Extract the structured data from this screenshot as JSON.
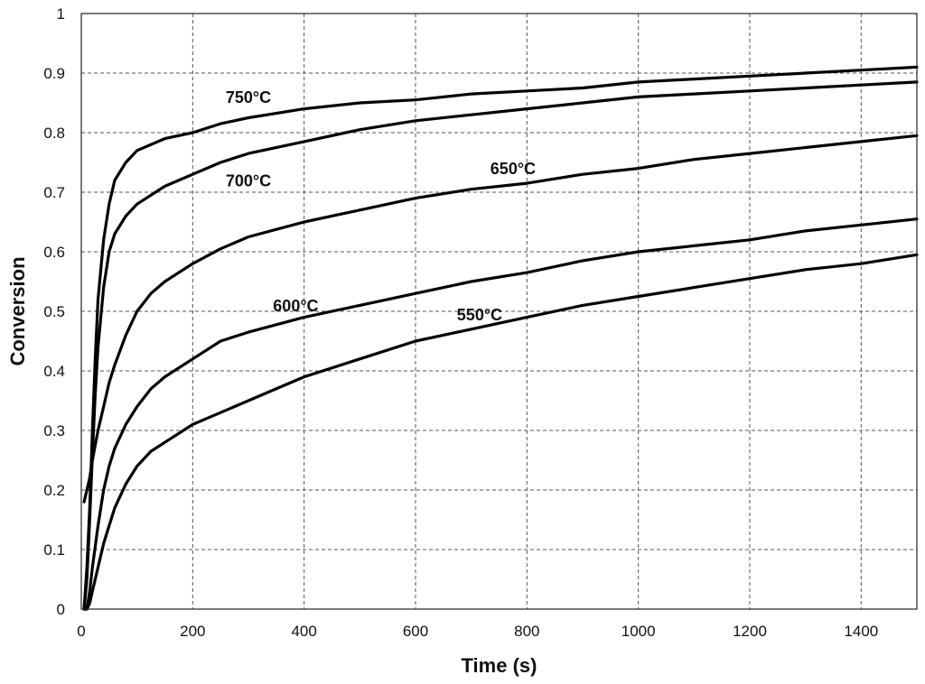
{
  "chart_data": {
    "type": "line",
    "title": "",
    "xlabel": "Time (s)",
    "ylabel": "Conversion",
    "xlim": [
      0,
      1500
    ],
    "ylim": [
      0,
      1
    ],
    "x_ticks": [
      0,
      200,
      400,
      600,
      800,
      1000,
      1200,
      1400
    ],
    "y_ticks": [
      0,
      0.1,
      0.2,
      0.3,
      0.4,
      0.5,
      0.6,
      0.7,
      0.8,
      0.9,
      1
    ],
    "x_tick_labels": [
      "0",
      "200",
      "400",
      "600",
      "800",
      "1000",
      "1200",
      "1400"
    ],
    "y_tick_labels": [
      "0",
      "0.1",
      "0.2",
      "0.3",
      "0.4",
      "0.5",
      "0.6",
      "0.7",
      "0.8",
      "0.9",
      "1"
    ],
    "grid": true,
    "legend": "none",
    "line_color": "#000000",
    "series": [
      {
        "x": [
          5,
          10,
          15,
          20,
          25,
          30,
          40,
          50,
          60,
          80,
          100,
          150,
          200,
          250,
          300,
          400,
          500,
          600,
          700,
          800,
          900,
          1000,
          1100,
          1200,
          1300,
          1400,
          1500
        ],
        "y": [
          0.0,
          0.07,
          0.17,
          0.3,
          0.42,
          0.52,
          0.62,
          0.68,
          0.72,
          0.75,
          0.77,
          0.79,
          0.8,
          0.815,
          0.825,
          0.84,
          0.85,
          0.855,
          0.865,
          0.87,
          0.875,
          0.885,
          0.89,
          0.895,
          0.9,
          0.905,
          0.91
        ]
      },
      {
        "x": [
          5,
          10,
          15,
          20,
          25,
          30,
          40,
          50,
          60,
          80,
          100,
          150,
          200,
          250,
          300,
          400,
          500,
          600,
          700,
          800,
          900,
          1000,
          1100,
          1200,
          1300,
          1400,
          1500
        ],
        "y": [
          0.0,
          0.05,
          0.15,
          0.26,
          0.36,
          0.44,
          0.54,
          0.6,
          0.63,
          0.66,
          0.68,
          0.71,
          0.73,
          0.75,
          0.765,
          0.785,
          0.805,
          0.82,
          0.83,
          0.84,
          0.85,
          0.86,
          0.865,
          0.87,
          0.875,
          0.88,
          0.885
        ]
      },
      {
        "x": [
          5,
          10,
          15,
          20,
          30,
          40,
          50,
          60,
          80,
          100,
          125,
          150,
          200,
          250,
          300,
          400,
          500,
          600,
          700,
          800,
          900,
          1000,
          1100,
          1200,
          1300,
          1400,
          1500
        ],
        "y": [
          0.18,
          0.2,
          0.22,
          0.25,
          0.3,
          0.34,
          0.38,
          0.41,
          0.46,
          0.5,
          0.53,
          0.55,
          0.58,
          0.605,
          0.625,
          0.65,
          0.67,
          0.69,
          0.705,
          0.715,
          0.73,
          0.74,
          0.755,
          0.765,
          0.775,
          0.785,
          0.795
        ]
      },
      {
        "x": [
          5,
          10,
          15,
          20,
          30,
          40,
          50,
          60,
          80,
          100,
          125,
          150,
          200,
          250,
          300,
          400,
          500,
          600,
          700,
          800,
          900,
          1000,
          1100,
          1200,
          1300,
          1400,
          1500
        ],
        "y": [
          0.0,
          0.0,
          0.03,
          0.07,
          0.14,
          0.2,
          0.24,
          0.27,
          0.31,
          0.34,
          0.37,
          0.39,
          0.42,
          0.45,
          0.465,
          0.49,
          0.51,
          0.53,
          0.55,
          0.565,
          0.585,
          0.6,
          0.61,
          0.62,
          0.635,
          0.645,
          0.655
        ]
      },
      {
        "x": [
          5,
          10,
          15,
          20,
          30,
          40,
          50,
          60,
          80,
          100,
          125,
          150,
          200,
          250,
          300,
          400,
          500,
          600,
          700,
          800,
          900,
          1000,
          1100,
          1200,
          1300,
          1400,
          1500
        ],
        "y": [
          0.0,
          0.0,
          0.01,
          0.03,
          0.07,
          0.11,
          0.14,
          0.17,
          0.21,
          0.24,
          0.265,
          0.28,
          0.31,
          0.33,
          0.35,
          0.39,
          0.42,
          0.45,
          0.47,
          0.49,
          0.51,
          0.525,
          0.54,
          0.555,
          0.57,
          0.58,
          0.595
        ]
      }
    ],
    "annotations": [
      {
        "text": "750°C",
        "x": 300,
        "y": 0.85
      },
      {
        "text": "700°C",
        "x": 300,
        "y": 0.71
      },
      {
        "text": "650°C",
        "x": 775,
        "y": 0.73
      },
      {
        "text": "600°C",
        "x": 385,
        "y": 0.5
      },
      {
        "text": "550°C",
        "x": 715,
        "y": 0.485
      }
    ]
  }
}
